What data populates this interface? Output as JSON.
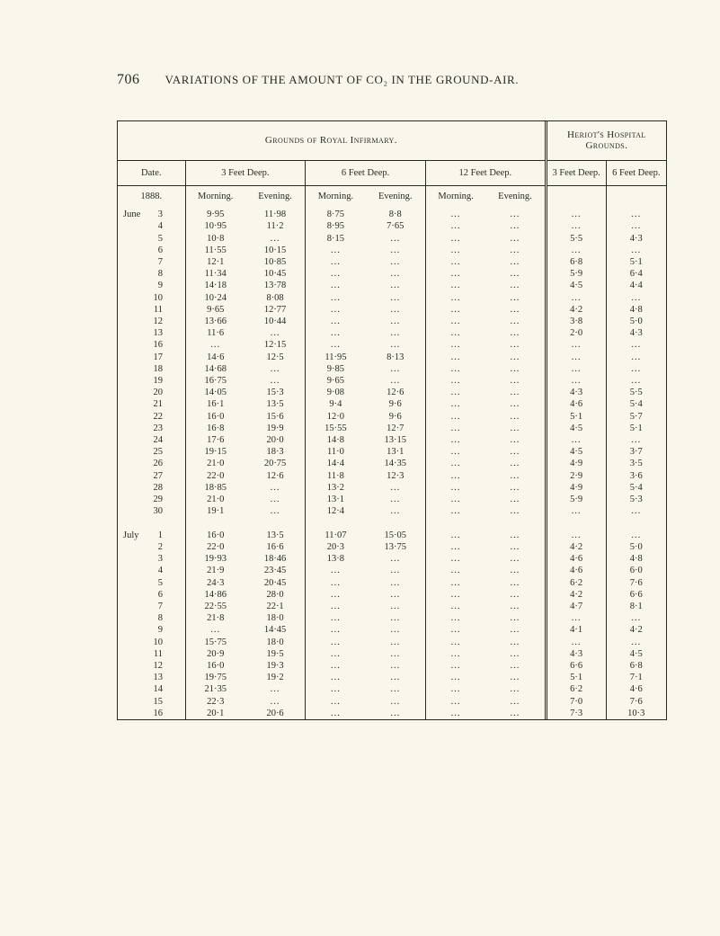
{
  "page_number": "706",
  "running_title": "VARIATIONS OF THE AMOUNT OF CO₂ IN THE GROUND-AIR.",
  "top_headers": {
    "left": "Grounds of Royal Infirmary.",
    "right": "Heriot's Hospital Grounds."
  },
  "sub_headers": {
    "date": "Date.",
    "depth3": "3 Feet Deep.",
    "depth6": "6 Feet Deep.",
    "depth12": "12 Feet Deep.",
    "heriot3": "3 Feet Deep.",
    "heriot6": "6 Feet Deep."
  },
  "col_headers": {
    "year": "1888.",
    "morning": "Morning.",
    "evening": "Evening."
  },
  "ellipsis": "...",
  "blocks": [
    {
      "month": "June",
      "rows": [
        {
          "day": "3",
          "m3": "9·95",
          "e3": "11·98",
          "m6": "8·75",
          "e6": "8·8",
          "m12": "...",
          "e12": "...",
          "h3": "...",
          "h6": "..."
        },
        {
          "day": "4",
          "m3": "10·95",
          "e3": "11·2",
          "m6": "8·95",
          "e6": "7·65",
          "m12": "...",
          "e12": "...",
          "h3": "...",
          "h6": "..."
        },
        {
          "day": "5",
          "m3": "10·8",
          "e3": "...",
          "m6": "8·15",
          "e6": "...",
          "m12": "...",
          "e12": "...",
          "h3": "5·5",
          "h6": "4·3"
        },
        {
          "day": "6",
          "m3": "11·55",
          "e3": "10·15",
          "m6": "...",
          "e6": "...",
          "m12": "...",
          "e12": "...",
          "h3": "...",
          "h6": "..."
        },
        {
          "day": "7",
          "m3": "12·1",
          "e3": "10·85",
          "m6": "...",
          "e6": "...",
          "m12": "...",
          "e12": "...",
          "h3": "6·8",
          "h6": "5·1"
        },
        {
          "day": "8",
          "m3": "11·34",
          "e3": "10·45",
          "m6": "...",
          "e6": "...",
          "m12": "...",
          "e12": "...",
          "h3": "5·9",
          "h6": "6·4"
        },
        {
          "day": "9",
          "m3": "14·18",
          "e3": "13·78",
          "m6": "...",
          "e6": "...",
          "m12": "...",
          "e12": "...",
          "h3": "4·5",
          "h6": "4·4"
        },
        {
          "day": "10",
          "m3": "10·24",
          "e3": "8·08",
          "m6": "...",
          "e6": "...",
          "m12": "...",
          "e12": "...",
          "h3": "...",
          "h6": "..."
        },
        {
          "day": "11",
          "m3": "9·65",
          "e3": "12·77",
          "m6": "...",
          "e6": "...",
          "m12": "...",
          "e12": "...",
          "h3": "4·2",
          "h6": "4·8"
        },
        {
          "day": "12",
          "m3": "13·66",
          "e3": "10·44",
          "m6": "...",
          "e6": "...",
          "m12": "...",
          "e12": "...",
          "h3": "3·8",
          "h6": "5·0"
        },
        {
          "day": "13",
          "m3": "11·6",
          "e3": "...",
          "m6": "...",
          "e6": "...",
          "m12": "...",
          "e12": "...",
          "h3": "2·0",
          "h6": "4·3"
        },
        {
          "day": "16",
          "m3": "...",
          "e3": "12·15",
          "m6": "...",
          "e6": "...",
          "m12": "...",
          "e12": "...",
          "h3": "...",
          "h6": "..."
        },
        {
          "day": "17",
          "m3": "14·6",
          "e3": "12·5",
          "m6": "11·95",
          "e6": "8·13",
          "m12": "...",
          "e12": "...",
          "h3": "...",
          "h6": "..."
        },
        {
          "day": "18",
          "m3": "14·68",
          "e3": "...",
          "m6": "9·85",
          "e6": "...",
          "m12": "...",
          "e12": "...",
          "h3": "...",
          "h6": "..."
        },
        {
          "day": "19",
          "m3": "16·75",
          "e3": "...",
          "m6": "9·65",
          "e6": "...",
          "m12": "...",
          "e12": "...",
          "h3": "...",
          "h6": "..."
        },
        {
          "day": "20",
          "m3": "14·05",
          "e3": "15·3",
          "m6": "9·08",
          "e6": "12·6",
          "m12": "...",
          "e12": "...",
          "h3": "4·3",
          "h6": "5·5"
        },
        {
          "day": "21",
          "m3": "16·1",
          "e3": "13·5",
          "m6": "9·4",
          "e6": "9·6",
          "m12": "...",
          "e12": "...",
          "h3": "4·6",
          "h6": "5·4"
        },
        {
          "day": "22",
          "m3": "16·0",
          "e3": "15·6",
          "m6": "12·0",
          "e6": "9·6",
          "m12": "...",
          "e12": "...",
          "h3": "5·1",
          "h6": "5·7"
        },
        {
          "day": "23",
          "m3": "16·8",
          "e3": "19·9",
          "m6": "15·55",
          "e6": "12·7",
          "m12": "...",
          "e12": "...",
          "h3": "4·5",
          "h6": "5·1"
        },
        {
          "day": "24",
          "m3": "17·6",
          "e3": "20·0",
          "m6": "14·8",
          "e6": "13·15",
          "m12": "...",
          "e12": "...",
          "h3": "...",
          "h6": "..."
        },
        {
          "day": "25",
          "m3": "19·15",
          "e3": "18·3",
          "m6": "11·0",
          "e6": "13·1",
          "m12": "...",
          "e12": "...",
          "h3": "4·5",
          "h6": "3·7"
        },
        {
          "day": "26",
          "m3": "21·0",
          "e3": "20·75",
          "m6": "14·4",
          "e6": "14·35",
          "m12": "...",
          "e12": "...",
          "h3": "4·9",
          "h6": "3·5"
        },
        {
          "day": "27",
          "m3": "22·0",
          "e3": "12·6",
          "m6": "11·8",
          "e6": "12·3",
          "m12": "...",
          "e12": "...",
          "h3": "2·9",
          "h6": "3·6"
        },
        {
          "day": "28",
          "m3": "18·85",
          "e3": "...",
          "m6": "13·2",
          "e6": "...",
          "m12": "...",
          "e12": "...",
          "h3": "4·9",
          "h6": "5·4"
        },
        {
          "day": "29",
          "m3": "21·0",
          "e3": "...",
          "m6": "13·1",
          "e6": "...",
          "m12": "...",
          "e12": "...",
          "h3": "5·9",
          "h6": "5·3"
        },
        {
          "day": "30",
          "m3": "19·1",
          "e3": "...",
          "m6": "12·4",
          "e6": "...",
          "m12": "...",
          "e12": "...",
          "h3": "...",
          "h6": "..."
        }
      ]
    },
    {
      "month": "July",
      "rows": [
        {
          "day": "1",
          "m3": "16·0",
          "e3": "13·5",
          "m6": "11·07",
          "e6": "15·05",
          "m12": "...",
          "e12": "...",
          "h3": "...",
          "h6": "..."
        },
        {
          "day": "2",
          "m3": "22·0",
          "e3": "16·6",
          "m6": "20·3",
          "e6": "13·75",
          "m12": "...",
          "e12": "...",
          "h3": "4·2",
          "h6": "5·0"
        },
        {
          "day": "3",
          "m3": "19·93",
          "e3": "18·46",
          "m6": "13·8",
          "e6": "...",
          "m12": "...",
          "e12": "...",
          "h3": "4·6",
          "h6": "4·8"
        },
        {
          "day": "4",
          "m3": "21·9",
          "e3": "23·45",
          "m6": "...",
          "e6": "...",
          "m12": "...",
          "e12": "...",
          "h3": "4·6",
          "h6": "6·0"
        },
        {
          "day": "5",
          "m3": "24·3",
          "e3": "20·45",
          "m6": "...",
          "e6": "...",
          "m12": "...",
          "e12": "...",
          "h3": "6·2",
          "h6": "7·6"
        },
        {
          "day": "6",
          "m3": "14·86",
          "e3": "28·0",
          "m6": "...",
          "e6": "...",
          "m12": "...",
          "e12": "...",
          "h3": "4·2",
          "h6": "6·6"
        },
        {
          "day": "7",
          "m3": "22·55",
          "e3": "22·1",
          "m6": "...",
          "e6": "...",
          "m12": "...",
          "e12": "...",
          "h3": "4·7",
          "h6": "8·1"
        },
        {
          "day": "8",
          "m3": "21·8",
          "e3": "18·0",
          "m6": "...",
          "e6": "...",
          "m12": "...",
          "e12": "...",
          "h3": "...",
          "h6": "..."
        },
        {
          "day": "9",
          "m3": "...",
          "e3": "14·45",
          "m6": "...",
          "e6": "...",
          "m12": "...",
          "e12": "...",
          "h3": "4·1",
          "h6": "4·2"
        },
        {
          "day": "10",
          "m3": "15·75",
          "e3": "18·0",
          "m6": "...",
          "e6": "...",
          "m12": "...",
          "e12": "...",
          "h3": "...",
          "h6": "..."
        },
        {
          "day": "11",
          "m3": "20·9",
          "e3": "19·5",
          "m6": "...",
          "e6": "...",
          "m12": "...",
          "e12": "...",
          "h3": "4·3",
          "h6": "4·5"
        },
        {
          "day": "12",
          "m3": "16·0",
          "e3": "19·3",
          "m6": "...",
          "e6": "...",
          "m12": "...",
          "e12": "...",
          "h3": "6·6",
          "h6": "6·8"
        },
        {
          "day": "13",
          "m3": "19·75",
          "e3": "19·2",
          "m6": "...",
          "e6": "...",
          "m12": "...",
          "e12": "...",
          "h3": "5·1",
          "h6": "7·1"
        },
        {
          "day": "14",
          "m3": "21·35",
          "e3": "...",
          "m6": "...",
          "e6": "...",
          "m12": "...",
          "e12": "...",
          "h3": "6·2",
          "h6": "4·6"
        },
        {
          "day": "15",
          "m3": "22·3",
          "e3": "...",
          "m6": "...",
          "e6": "...",
          "m12": "...",
          "e12": "...",
          "h3": "7·0",
          "h6": "7·6"
        },
        {
          "day": "16",
          "m3": "20·1",
          "e3": "20·6",
          "m6": "...",
          "e6": "...",
          "m12": "...",
          "e12": "...",
          "h3": "7·3",
          "h6": "10·3"
        }
      ]
    }
  ]
}
